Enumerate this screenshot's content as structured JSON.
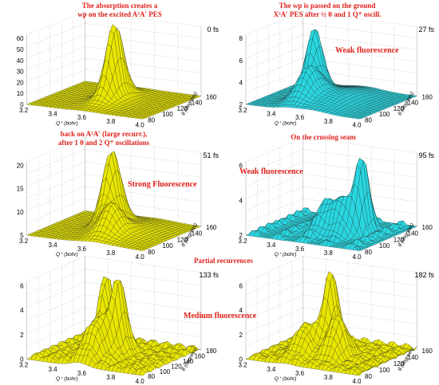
{
  "captions": {
    "c1_line1": "The absorption creates a",
    "c1_line2": "wp on the excited A²A′ PES",
    "c2_line1": "The wp is passed on the ground",
    "c2_line2": "X²A′ PES after ½ θ and 1 Q⁺ oscill.",
    "c3_line1": "back on A²A′ (large recurr.),",
    "c3_line2": "after 1 θ and 2 Q⁺ oscillations",
    "c4": "On the crossing seam",
    "c5": "Partial recurrences"
  },
  "panels": [
    {
      "id": "p1",
      "time": "0 fs",
      "zticks": [
        "60",
        "50",
        "40",
        "30",
        "20",
        "10",
        "0"
      ],
      "qticks": [
        "3.2",
        "3.4",
        "3.6",
        "3.8",
        "4.0"
      ],
      "thticks": [
        "160",
        "140",
        "120",
        "100",
        "80"
      ],
      "qlabel": "Q⁺ (bohr)",
      "thlabel": "θ (degrees)",
      "color": "#e8e600",
      "note": ""
    },
    {
      "id": "p2",
      "time": "27 fs",
      "zticks": [
        "8",
        "6",
        "4",
        "2"
      ],
      "qticks": [
        "3.2",
        "3.4",
        "3.6",
        "3.8",
        "4.0"
      ],
      "thticks": [
        "160",
        "140",
        "120",
        "100",
        "80"
      ],
      "qlabel": "Q⁺ (bohr)",
      "thlabel": "θ (degrees)",
      "color": "#29d6e0",
      "note": "Weak fluorescence"
    },
    {
      "id": "p3",
      "time": "51 fs",
      "zticks": [
        "20",
        "15",
        "10",
        "5"
      ],
      "qticks": [
        "3.2",
        "3.4",
        "3.6",
        "3.8",
        "4.0"
      ],
      "thticks": [
        "160",
        "140",
        "120",
        "100",
        "80"
      ],
      "qlabel": "Q⁺ (bohr)",
      "thlabel": "θ (degrees)",
      "color": "#e8e600",
      "note": "Strong Fluorescence"
    },
    {
      "id": "p4",
      "time": "95 fs",
      "zticks": [
        "6",
        "4",
        "2"
      ],
      "qticks": [
        "3.2",
        "3.4",
        "3.6",
        "3.8",
        "4.0"
      ],
      "thticks": [
        "160",
        "140",
        "120",
        "100",
        "80"
      ],
      "qlabel": "Q⁺ (bohr)",
      "thlabel": "θ (degrees)",
      "color": "#29d6e0",
      "note": "Weak fluorescence"
    },
    {
      "id": "p5",
      "time": "133 fs",
      "zticks": [
        "6",
        "4",
        "2",
        "0"
      ],
      "qticks": [
        "3.2",
        "3.4",
        "3.6",
        "3.8",
        "4.0"
      ],
      "thticks": [
        "180",
        "160",
        "140",
        "120",
        "100",
        "80"
      ],
      "qlabel": "Q⁺ (bohr)",
      "thlabel": "θ (degrees)",
      "color": "#e8e600",
      "note": "Medium fluorescence"
    },
    {
      "id": "p6",
      "time": "182 fs",
      "zticks": [
        "6",
        "4",
        "2",
        "0"
      ],
      "qticks": [
        "3.2",
        "3.4",
        "3.6",
        "3.8",
        "4.0"
      ],
      "thticks": [
        "160",
        "140",
        "120",
        "100",
        "80"
      ],
      "qlabel": "Q⁺ (bohr)",
      "thlabel": "θ (degrees)",
      "color": "#e8e600",
      "note": ""
    }
  ]
}
